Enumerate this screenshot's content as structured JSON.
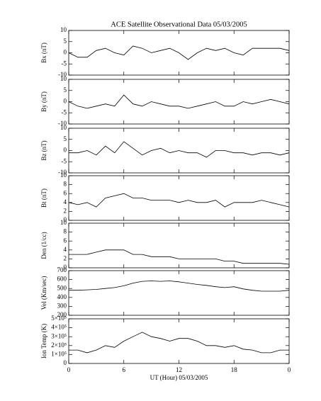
{
  "chart_data": [
    {
      "type": "line",
      "title": "ACE Satellite Observational Data   05/03/2005",
      "ylabel": "Bx (nT)",
      "x": [
        0,
        1,
        2,
        3,
        4,
        5,
        6,
        7,
        8,
        9,
        10,
        11,
        12,
        13,
        14,
        15,
        16,
        17,
        18,
        19,
        20,
        21,
        22,
        23,
        24
      ],
      "values": [
        0,
        -2,
        -2,
        1,
        2,
        0,
        -1,
        3,
        2,
        0,
        1,
        2,
        0,
        -3,
        0,
        2,
        1,
        2,
        0,
        -1,
        2,
        2,
        2,
        2,
        1
      ],
      "xlim": [
        0,
        24
      ],
      "xticks": [
        0,
        6,
        12,
        18,
        24
      ],
      "ylim": [
        -10,
        10
      ],
      "yticks": [
        -10,
        -5,
        0,
        5,
        10
      ]
    },
    {
      "type": "line",
      "ylabel": "By (nT)",
      "x": [
        0,
        1,
        2,
        3,
        4,
        5,
        6,
        7,
        8,
        9,
        10,
        11,
        12,
        13,
        14,
        15,
        16,
        17,
        18,
        19,
        20,
        21,
        22,
        23,
        24
      ],
      "values": [
        0,
        -2,
        -3,
        -2,
        -1,
        -2,
        3,
        -1,
        -2,
        0,
        -1,
        -2,
        -2,
        -3,
        -2,
        -1,
        0,
        -2,
        -2,
        0,
        -1,
        0,
        1,
        0,
        -1
      ],
      "xlim": [
        0,
        24
      ],
      "xticks": [
        0,
        6,
        12,
        18,
        24
      ],
      "ylim": [
        -10,
        10
      ],
      "yticks": [
        -10,
        -5,
        0,
        5,
        10
      ]
    },
    {
      "type": "line",
      "ylabel": "Bz (nT)",
      "x": [
        0,
        1,
        2,
        3,
        4,
        5,
        6,
        7,
        8,
        9,
        10,
        11,
        12,
        13,
        14,
        15,
        16,
        17,
        18,
        19,
        20,
        21,
        22,
        23,
        24
      ],
      "values": [
        -1,
        -1,
        0,
        -2,
        2,
        -1,
        4,
        1,
        -2,
        0,
        1,
        -1,
        0,
        -1,
        -1,
        -3,
        0,
        0,
        -1,
        -1,
        -2,
        -1,
        -1,
        -2,
        -1
      ],
      "xlim": [
        0,
        24
      ],
      "xticks": [
        0,
        6,
        12,
        18,
        24
      ],
      "ylim": [
        -10,
        10
      ],
      "yticks": [
        -10,
        -5,
        0,
        5,
        10
      ]
    },
    {
      "type": "line",
      "ylabel": "Bt (nT)",
      "x": [
        0,
        1,
        2,
        3,
        4,
        5,
        6,
        7,
        8,
        9,
        10,
        11,
        12,
        13,
        14,
        15,
        16,
        17,
        18,
        19,
        20,
        21,
        22,
        23,
        24
      ],
      "values": [
        4,
        3.5,
        4,
        3,
        5,
        5.5,
        6,
        5,
        5,
        4.5,
        4.5,
        4.5,
        4,
        4.5,
        4,
        4,
        4.5,
        3,
        4,
        4,
        4,
        4.5,
        4,
        3.5,
        3
      ],
      "xlim": [
        0,
        24
      ],
      "xticks": [
        0,
        6,
        12,
        18,
        24
      ],
      "ylim": [
        0,
        10
      ],
      "yticks": [
        0,
        2,
        4,
        6,
        8,
        10
      ]
    },
    {
      "type": "line",
      "ylabel": "Den (1/cc)",
      "x": [
        0,
        1,
        2,
        3,
        4,
        5,
        6,
        7,
        8,
        9,
        10,
        11,
        12,
        13,
        14,
        15,
        16,
        17,
        18,
        19,
        20,
        21,
        22,
        23,
        24
      ],
      "values": [
        3,
        3,
        3,
        3.5,
        4,
        4,
        4,
        3,
        3,
        2.5,
        2.5,
        2.5,
        2,
        2,
        2,
        2,
        2,
        1.5,
        1.5,
        1,
        1,
        1,
        1,
        1,
        0.8
      ],
      "xlim": [
        0,
        24
      ],
      "xticks": [
        0,
        6,
        12,
        18,
        24
      ],
      "ylim": [
        0,
        10
      ],
      "yticks": [
        0,
        2,
        4,
        6,
        8,
        10
      ]
    },
    {
      "type": "line",
      "ylabel": "Vel (Km/sec)",
      "x": [
        0,
        1,
        2,
        3,
        4,
        5,
        6,
        7,
        8,
        9,
        10,
        11,
        12,
        13,
        14,
        15,
        16,
        17,
        18,
        19,
        20,
        21,
        22,
        23,
        24
      ],
      "values": [
        480,
        480,
        485,
        490,
        500,
        510,
        530,
        560,
        580,
        585,
        580,
        585,
        575,
        560,
        545,
        535,
        520,
        510,
        520,
        495,
        480,
        470,
        470,
        470,
        480
      ],
      "xlim": [
        0,
        24
      ],
      "xticks": [
        0,
        6,
        12,
        18,
        24
      ],
      "ylim": [
        200,
        700
      ],
      "yticks": [
        200,
        300,
        400,
        500,
        600,
        700
      ]
    },
    {
      "type": "line",
      "ylabel": "Ion Temp (K)",
      "xlabel": "UT (Hour)   05/03/2005",
      "x": [
        0,
        1,
        2,
        3,
        4,
        5,
        6,
        7,
        8,
        9,
        10,
        11,
        12,
        13,
        14,
        15,
        16,
        17,
        18,
        19,
        20,
        21,
        22,
        23,
        24
      ],
      "values": [
        150000,
        150000,
        120000,
        150000,
        200000,
        180000,
        250000,
        300000,
        350000,
        300000,
        280000,
        250000,
        280000,
        280000,
        250000,
        200000,
        200000,
        180000,
        200000,
        160000,
        150000,
        120000,
        120000,
        150000,
        150000
      ],
      "xlim": [
        0,
        24
      ],
      "xticks": [
        0,
        6,
        12,
        18,
        {
          "value": 24,
          "label": "0"
        }
      ],
      "ylim": [
        0,
        500000
      ],
      "yticks": [
        0,
        {
          "value": 100000,
          "label": "1×10⁵"
        },
        {
          "value": 200000,
          "label": "2×10⁵"
        },
        {
          "value": 300000,
          "label": "3×10⁵"
        },
        {
          "value": 400000,
          "label": "4×10⁵"
        },
        {
          "value": 500000,
          "label": "5×10⁵"
        }
      ]
    }
  ]
}
